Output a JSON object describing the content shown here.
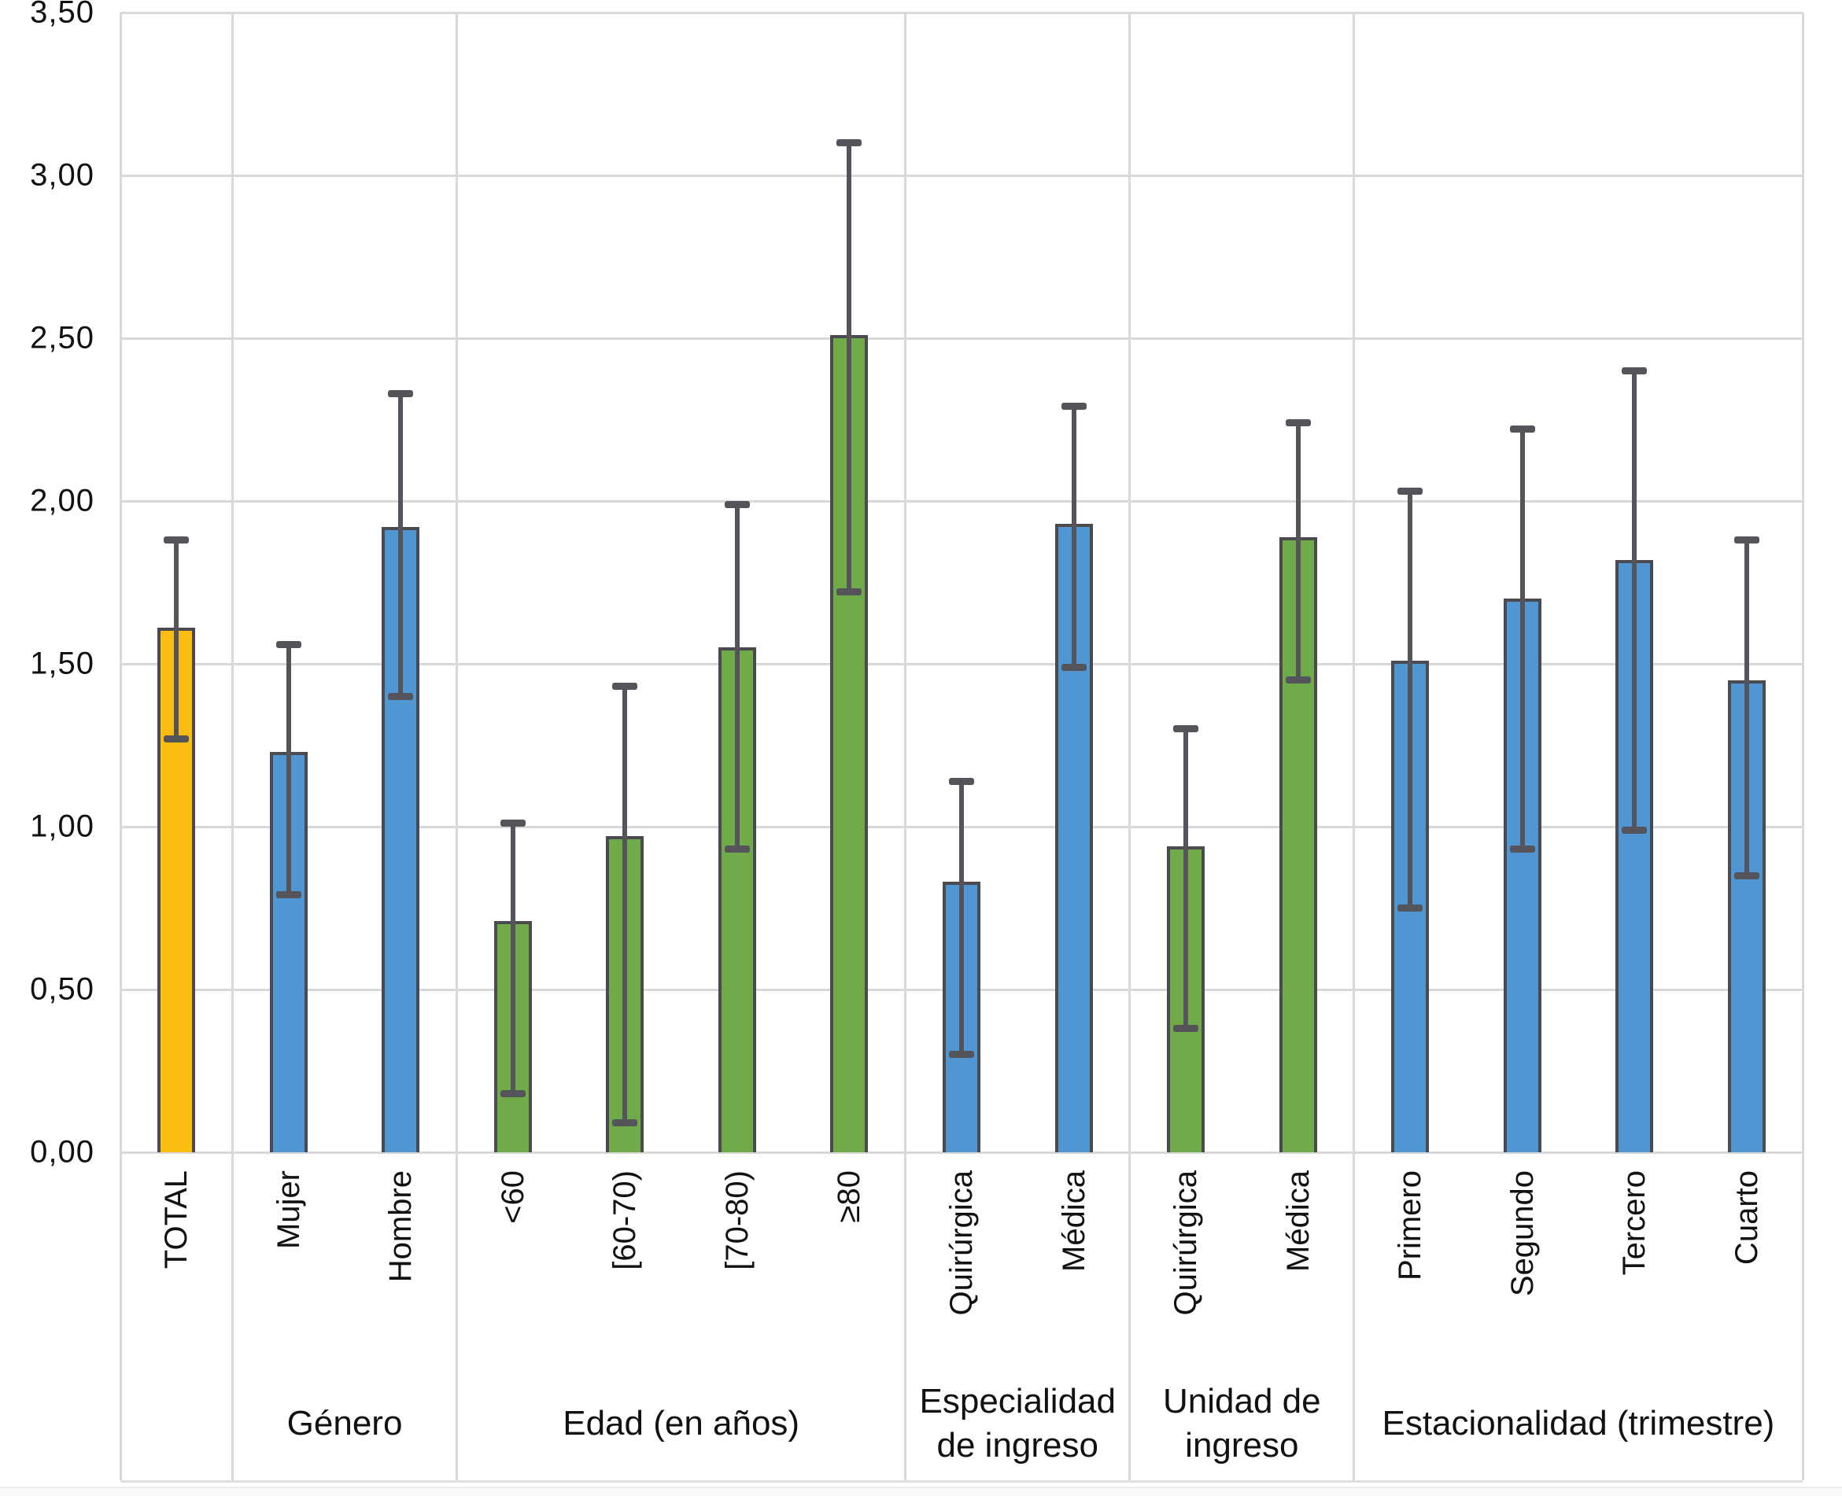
{
  "chart_data": {
    "type": "bar",
    "title": "",
    "xlabel": "",
    "ylabel": "",
    "grid": true,
    "legend": null,
    "y_axis": {
      "min": 0,
      "max": 3.5,
      "step": 0.5,
      "tick_labels": [
        "0,00",
        "0,50",
        "1,00",
        "1,50",
        "2,00",
        "2,50",
        "3,00",
        "3,50"
      ]
    },
    "groups": [
      {
        "label": "",
        "color_key": "orange",
        "bars": [
          {
            "category": "TOTAL",
            "value": 1.61,
            "err_low": 1.27,
            "err_high": 1.88
          }
        ]
      },
      {
        "label": "Género",
        "color_key": "blue",
        "bars": [
          {
            "category": "Mujer",
            "value": 1.23,
            "err_low": 0.79,
            "err_high": 1.56
          },
          {
            "category": "Hombre",
            "value": 1.92,
            "err_low": 1.4,
            "err_high": 2.33
          }
        ]
      },
      {
        "label": "Edad (en años)",
        "color_key": "green",
        "bars": [
          {
            "category": "<60",
            "value": 0.71,
            "err_low": 0.18,
            "err_high": 1.01
          },
          {
            "category": "[60-70)",
            "value": 0.97,
            "err_low": 0.09,
            "err_high": 1.43
          },
          {
            "category": "[70-80)",
            "value": 1.55,
            "err_low": 0.93,
            "err_high": 1.99
          },
          {
            "category": "≥80",
            "value": 2.51,
            "err_low": 1.72,
            "err_high": 3.1
          }
        ]
      },
      {
        "label": "Especialidad de ingreso",
        "color_key": "blue",
        "bars": [
          {
            "category": "Quirúrgica",
            "value": 0.83,
            "err_low": 0.3,
            "err_high": 1.14
          },
          {
            "category": "Médica",
            "value": 1.93,
            "err_low": 1.49,
            "err_high": 2.29
          }
        ]
      },
      {
        "label": "Unidad de ingreso",
        "color_key": "green",
        "bars": [
          {
            "category": "Quirúrgica",
            "value": 0.94,
            "err_low": 0.38,
            "err_high": 1.3
          },
          {
            "category": "Médica",
            "value": 1.89,
            "err_low": 1.45,
            "err_high": 2.24
          }
        ]
      },
      {
        "label": "Estacionalidad (trimestre)",
        "color_key": "blue",
        "bars": [
          {
            "category": "Primero",
            "value": 1.51,
            "err_low": 0.75,
            "err_high": 2.03
          },
          {
            "category": "Segundo",
            "value": 1.7,
            "err_low": 0.93,
            "err_high": 2.22
          },
          {
            "category": "Tercero",
            "value": 1.82,
            "err_low": 0.99,
            "err_high": 2.4
          },
          {
            "category": "Cuarto",
            "value": 1.45,
            "err_low": 0.85,
            "err_high": 1.88
          }
        ]
      }
    ],
    "colors": {
      "orange": "#FBBC12",
      "blue": "#4F96D3",
      "green": "#6FAC49",
      "error_bar": "#54545A",
      "bar_border": "#4A4A50",
      "gridline": "#D9D9D9",
      "separator": "#D9D9D9",
      "text": "#111111"
    }
  }
}
